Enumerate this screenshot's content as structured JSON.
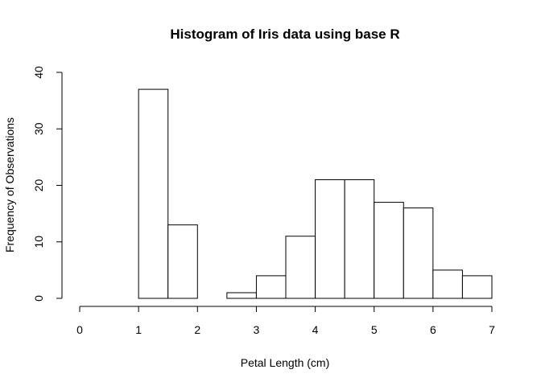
{
  "chart_data": {
    "type": "histogram",
    "title": "Histogram of Iris data using base R",
    "xlabel": "Petal Length (cm)",
    "ylabel": "Frequency of Observations",
    "bins": [
      {
        "start": 1.0,
        "end": 1.5,
        "count": 37
      },
      {
        "start": 1.5,
        "end": 2.0,
        "count": 13
      },
      {
        "start": 2.0,
        "end": 2.5,
        "count": 0
      },
      {
        "start": 2.5,
        "end": 3.0,
        "count": 1
      },
      {
        "start": 3.0,
        "end": 3.5,
        "count": 4
      },
      {
        "start": 3.5,
        "end": 4.0,
        "count": 11
      },
      {
        "start": 4.0,
        "end": 4.5,
        "count": 21
      },
      {
        "start": 4.5,
        "end": 5.0,
        "count": 21
      },
      {
        "start": 5.0,
        "end": 5.5,
        "count": 17
      },
      {
        "start": 5.5,
        "end": 6.0,
        "count": 16
      },
      {
        "start": 6.0,
        "end": 6.5,
        "count": 5
      },
      {
        "start": 6.5,
        "end": 7.0,
        "count": 4
      }
    ],
    "xlim": [
      0,
      7
    ],
    "ylim": [
      0,
      40
    ],
    "xticks": [
      "0",
      "1",
      "2",
      "3",
      "4",
      "5",
      "6",
      "7"
    ],
    "yticks": [
      "0",
      "10",
      "20",
      "30",
      "40"
    ],
    "grid": false,
    "bar_fill": "#ffffff",
    "bar_stroke": "#000000"
  }
}
